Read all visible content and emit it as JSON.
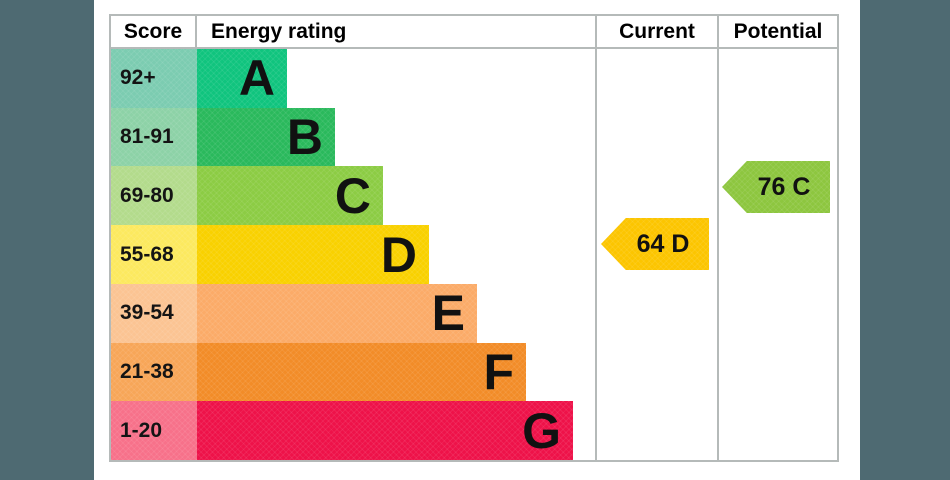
{
  "colors": {
    "page_background": "#4e6a72",
    "panel": "#ffffff",
    "table_border": "#b5bab9"
  },
  "header": {
    "score": "Score",
    "energy_rating": "Energy rating",
    "current": "Current",
    "potential": "Potential"
  },
  "bands": [
    {
      "letter": "A",
      "score_range": "92+",
      "bar_color": "#10c47e",
      "score_bg": "#7cccb1"
    },
    {
      "letter": "B",
      "score_range": "81-91",
      "bar_color": "#2ab95c",
      "score_bg": "#8dd2a7"
    },
    {
      "letter": "C",
      "score_range": "69-80",
      "bar_color": "#8ccc44",
      "score_bg": "#b3db8c"
    },
    {
      "letter": "D",
      "score_range": "55-68",
      "bar_color": "#f9d100",
      "score_bg": "#fce95f"
    },
    {
      "letter": "E",
      "score_range": "39-54",
      "bar_color": "#fbab68",
      "score_bg": "#fbc493"
    },
    {
      "letter": "F",
      "score_range": "21-38",
      "bar_color": "#f28c28",
      "score_bg": "#f7a658"
    },
    {
      "letter": "G",
      "score_range": "1-20",
      "bar_color": "#ee1249",
      "score_bg": "#f7718a"
    }
  ],
  "current": {
    "label": "64 D",
    "value": 64,
    "rating": "D",
    "arrow_color": "#fcc500"
  },
  "potential": {
    "label": "76 C",
    "value": 76,
    "rating": "C",
    "arrow_color": "#8dc63f"
  },
  "chart_data": {
    "type": "bar",
    "title": "EPC energy rating chart",
    "columns": [
      "Score",
      "Energy rating",
      "Current",
      "Potential"
    ],
    "categories": [
      "A",
      "B",
      "C",
      "D",
      "E",
      "F",
      "G"
    ],
    "score_ranges": [
      "92+",
      "81-91",
      "69-80",
      "55-68",
      "39-54",
      "21-38",
      "1-20"
    ],
    "bar_relative_widths": [
      1,
      2,
      3,
      4,
      5,
      6,
      7
    ],
    "band_colors": [
      "#10c47e",
      "#2ab95c",
      "#8ccc44",
      "#f9d100",
      "#fbab68",
      "#f28c28",
      "#ee1249"
    ],
    "markers": [
      {
        "column": "Current",
        "value": 64,
        "rating": "D",
        "label": "64 D",
        "color": "#fcc500",
        "band_index": 3
      },
      {
        "column": "Potential",
        "value": 76,
        "rating": "C",
        "label": "76 C",
        "color": "#8dc63f",
        "band_index": 2
      }
    ],
    "legend_position": "none",
    "grid": false
  }
}
